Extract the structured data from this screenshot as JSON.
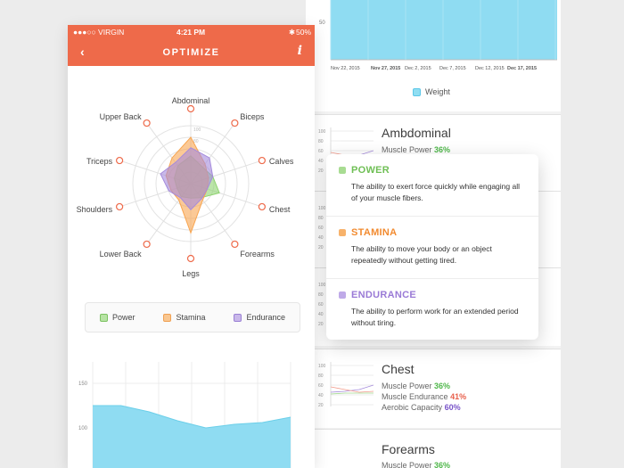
{
  "status_bar": {
    "carrier": "●●●○○ VIRGIN",
    "time": "4:21 PM",
    "battery": "50%"
  },
  "nav": {
    "title": "OPTIMIZE",
    "back": "‹",
    "info": "i"
  },
  "radar": {
    "axes": [
      "Abdominal",
      "Biceps",
      "Calves",
      "Chest",
      "Forearms",
      "Legs",
      "Lower Back",
      "Shoulders",
      "Triceps",
      "Upper Back"
    ],
    "ring_labels": [
      "100",
      "80"
    ],
    "series": [
      {
        "name": "Power",
        "color": "#8ed36f",
        "values": [
          48,
          35,
          40,
          52,
          30,
          25,
          28,
          25,
          30,
          38
        ]
      },
      {
        "name": "Stamina",
        "color": "#f8a550",
        "values": [
          80,
          42,
          32,
          30,
          35,
          85,
          35,
          36,
          45,
          55
        ]
      },
      {
        "name": "Endurance",
        "color": "#a58bdc",
        "values": [
          62,
          55,
          40,
          30,
          32,
          45,
          30,
          40,
          55,
          45
        ]
      }
    ]
  },
  "legend": [
    {
      "label": "Power",
      "fill": "#b7e3a4",
      "stroke": "#7cc262"
    },
    {
      "label": "Stamina",
      "fill": "#f9c791",
      "stroke": "#f0a052"
    },
    {
      "label": "Endurance",
      "fill": "#c9b8ea",
      "stroke": "#9a80d4"
    }
  ],
  "bottom_chart": {
    "y_ticks": [
      "150",
      "100"
    ],
    "values": [
      125,
      125,
      118,
      108,
      100,
      104,
      106,
      112
    ]
  },
  "weight_chart": {
    "y_tick": "50",
    "x_ticks": [
      "Nov 22, 2015",
      "Nov 27, 2015",
      "Dec 2, 2015",
      "Dec 7, 2015",
      "Dec 12, 2015",
      "Dec 17, 2015"
    ],
    "legend": "Weight"
  },
  "cards": [
    {
      "title": "Ambdominal",
      "rows": [
        {
          "label": "Muscle Power",
          "value": "36%",
          "cls": "green"
        }
      ]
    },
    {
      "title": "Chest",
      "rows": [
        {
          "label": "Muscle Power",
          "value": "36%",
          "cls": "green"
        },
        {
          "label": "Muscle Endurance",
          "value": "41%",
          "cls": "red"
        },
        {
          "label": "Aerobic Capacity",
          "value": "60%",
          "cls": "purple"
        }
      ]
    },
    {
      "title": "Forearms",
      "rows": [
        {
          "label": "Muscle Power",
          "value": "36%",
          "cls": "green"
        }
      ]
    }
  ],
  "mini_y_ticks": [
    "100",
    "80",
    "60",
    "40",
    "20"
  ],
  "popover": [
    {
      "title": "POWER",
      "color": "#6fbf55",
      "sq": "#a8dc92",
      "desc": "The ability to exert force quickly while engaging all of your muscle fibers."
    },
    {
      "title": "STAMINA",
      "color": "#f28b30",
      "sq": "#f7b26b",
      "desc": "The ability to move your body or an object repeatedly without getting tired."
    },
    {
      "title": "ENDURANCE",
      "color": "#9a7ad6",
      "sq": "#bfaae8",
      "desc": "The ability to perform work for an extended period without tiring."
    }
  ]
}
